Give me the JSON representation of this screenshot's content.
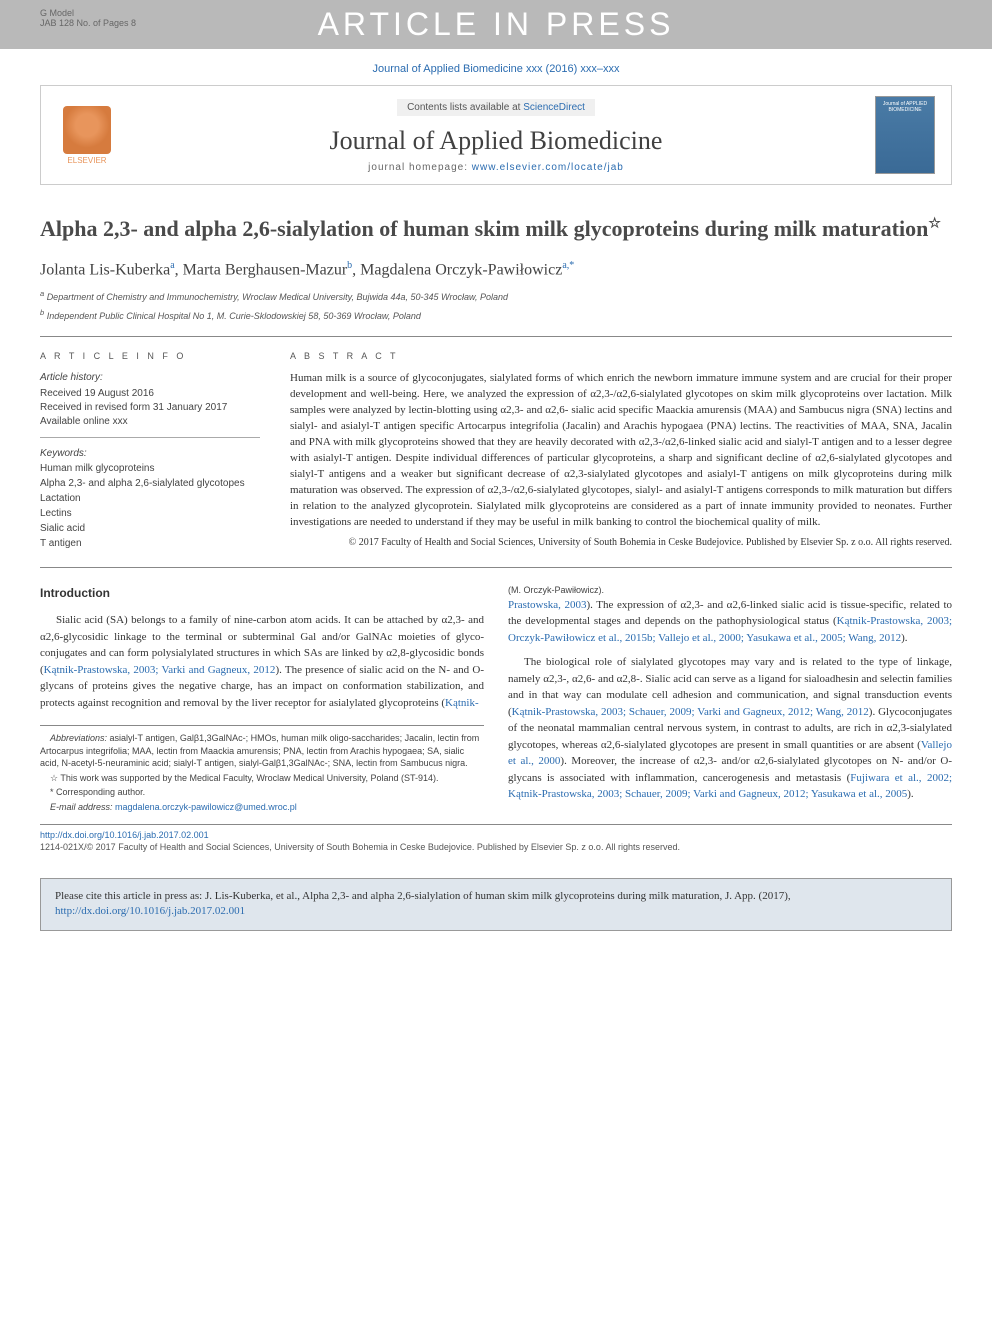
{
  "gmodel": {
    "label": "G Model",
    "code": "JAB 128 No. of Pages 8"
  },
  "watermark": "ARTICLE IN PRESS",
  "citation_top": "Journal of Applied Biomedicine xxx (2016) xxx–xxx",
  "header": {
    "contents_prefix": "Contents lists available at ",
    "sd": "ScienceDirect",
    "journal": "Journal of Applied Biomedicine",
    "homepage_prefix": "journal homepage: ",
    "homepage": "www.elsevier.com/locate/jab",
    "elsevier": "ELSEVIER",
    "cover_text": "Journal of APPLIED BIOMEDICINE"
  },
  "title": "Alpha 2,3- and alpha 2,6-sialylation of human skim milk glycoproteins during milk maturation",
  "authors_html": "Jolanta Lis-Kuberka",
  "author1": "Jolanta Lis-Kuberka",
  "author1_sup": "a",
  "author2": "Marta Berghausen-Mazur",
  "author2_sup": "b",
  "author3": "Magdalena Orczyk-Pawiłowicz",
  "author3_sup": "a,*",
  "affil_a": "Department of Chemistry and Immunochemistry, Wroclaw Medical University, Bujwida 44a, 50-345 Wrocław, Poland",
  "affil_b": "Independent Public Clinical Hospital No 1, M. Curie-Sklodowskiej 58, 50-369 Wrocław, Poland",
  "info": {
    "label": "A R T I C L E   I N F O",
    "history_label": "Article history:",
    "received": "Received 19 August 2016",
    "revised": "Received in revised form 31 January 2017",
    "online": "Available online xxx",
    "keywords_label": "Keywords:",
    "keywords": [
      "Human milk glycoproteins",
      "Alpha 2,3- and alpha 2,6-sialylated glycotopes",
      "Lactation",
      "Lectins",
      "Sialic acid",
      "T antigen"
    ]
  },
  "abstract": {
    "label": "A B S T R A C T",
    "text": "Human milk is a source of glycoconjugates, sialylated forms of which enrich the newborn immature immune system and are crucial for their proper development and well-being. Here, we analyzed the expression of α2,3-/α2,6-sialylated glycotopes on skim milk glycoproteins over lactation. Milk samples were analyzed by lectin-blotting using α2,3- and α2,6- sialic acid specific Maackia amurensis (MAA) and Sambucus nigra (SNA) lectins and sialyl- and asialyl-T antigen specific Artocarpus integrifolia (Jacalin) and Arachis hypogaea (PNA) lectins. The reactivities of MAA, SNA, Jacalin and PNA with milk glycoproteins showed that they are heavily decorated with α2,3-/α2,6-linked sialic acid and sialyl-T antigen and to a lesser degree with asialyl-T antigen. Despite individual differences of particular glycoproteins, a sharp and significant decline of α2,6-sialylated glycotopes and sialyl-T antigens and a weaker but significant decrease of α2,3-sialylated glycotopes and asialyl-T antigens on milk glycoproteins during milk maturation was observed. The expression of α2,3-/α2,6-sialylated glycotopes, sialyl- and asialyl-T antigens corresponds to milk maturation but differs in relation to the analyzed glycoprotein. Sialylated milk glycoproteins are considered as a part of innate immunity provided to neonates. Further investigations are needed to understand if they may be useful in milk banking to control the biochemical quality of milk.",
    "copyright": "© 2017 Faculty of Health and Social Sciences, University of South Bohemia in Ceske Budejovice. Published by Elsevier Sp. z o.o. All rights reserved."
  },
  "body": {
    "intro_heading": "Introduction",
    "p1a": "Sialic acid (SA) belongs to a family of nine-carbon atom acids. It can be attached by α2,3- and α2,6-glycosidic linkage to the terminal or subterminal Gal and/or GalNAc moieties of glyco-conjugates and can form polysialylated structures in which SAs are linked by α2,8-glycosidic bonds (",
    "p1ref1": "Kątnik-Prastowska, 2003; Varki and Gagneux, 2012",
    "p1b": "). The presence of sialic acid on the N- and O-glycans of proteins gives the negative charge, has an impact on conformation stabilization, and protects against recognition and removal by the liver receptor for asialylated glycoproteins (",
    "p1ref2": "Kątnik-",
    "p2a": "Prastowska, 2003",
    "p2b": "). The expression of α2,3- and α2,6-linked sialic acid is tissue-specific, related to the developmental stages and depends on the pathophysiological status (",
    "p2ref": "Kątnik-Prastowska, 2003; Orczyk-Pawiłowicz et al., 2015b; Vallejo et al., 2000; Yasukawa et al., 2005; Wang, 2012",
    "p2c": ").",
    "p3a": "The biological role of sialylated glycotopes may vary and is related to the type of linkage, namely α2,3-, α2,6- and α2,8-. Sialic acid can serve as a ligand for sialoadhesin and selectin families and in that way can modulate cell adhesion and communication, and signal transduction events (",
    "p3ref1": "Kątnik-Prastowska, 2003; Schauer, 2009; Varki and Gagneux, 2012; Wang, 2012",
    "p3b": "). Glycoconjugates of the neonatal mammalian central nervous system, in contrast to adults, are rich in α2,3-sialylated glycotopes, whereas α2,6-sialylated glycotopes are present in small quantities or are absent (",
    "p3ref2": "Vallejo et al., 2000",
    "p3c": "). Moreover, the increase of α2,3- and/or α2,6-sialylated glycotopes on N- and/or O-glycans is associated with inflammation, cancerogenesis and metastasis (",
    "p3ref3": "Fujiwara et al., 2002; Kątnik-Prastowska, 2003; Schauer, 2009; Varki and Gagneux, 2012; Yasukawa et al., 2005",
    "p3d": ")."
  },
  "footnotes": {
    "abbrev_label": "Abbreviations:",
    "abbrev": " asialyl-T antigen, Galβ1,3GalNAc-; HMOs, human milk oligo-saccharides; Jacalin, lectin from Artocarpus integrifolia; MAA, lectin from Maackia amurensis; PNA, lectin from Arachis hypogaea; SA, sialic acid, N-acetyl-5-neuraminic acid; sialyl-T antigen, sialyl-Galβ1,3GalNAc-; SNA, lectin from Sambucus nigra.",
    "funding": "This work was supported by the Medical Faculty, Wroclaw Medical University, Poland (ST-914).",
    "corr": "Corresponding author.",
    "email_label": "E-mail address:",
    "email": "magdalena.orczyk-pawilowicz@umed.wroc.pl",
    "email_name": "(M. Orczyk-Pawiłowicz)."
  },
  "doi": {
    "link": "http://dx.doi.org/10.1016/j.jab.2017.02.001",
    "issn": "1214-021X/© 2017 Faculty of Health and Social Sciences, University of South Bohemia in Ceske Budejovice. Published by Elsevier Sp. z o.o. All rights reserved."
  },
  "cite_box": {
    "text": "Please cite this article in press as: J. Lis-Kuberka, et al., Alpha 2,3- and alpha 2,6-sialylation of human skim milk glycoproteins during milk maturation, J. App. (2017), ",
    "link": "http://dx.doi.org/10.1016/j.jab.2017.02.001"
  },
  "colors": {
    "link": "#2b6cb0",
    "watermark_bg": "#b9b9b9",
    "citebox_bg": "#dfe6ed"
  }
}
